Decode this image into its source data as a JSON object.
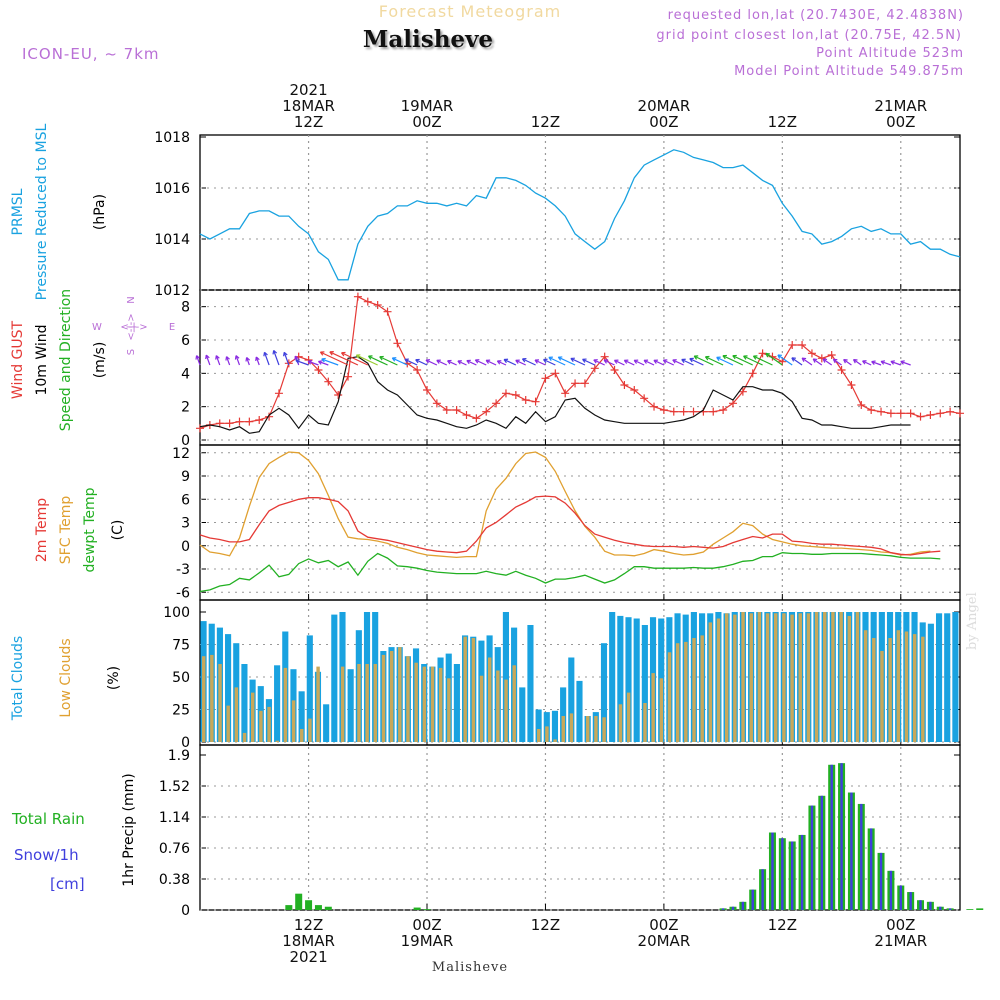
{
  "header": {
    "title": "Forecast Meteogram",
    "location": "Malisheve",
    "model": "ICON-EU, ~ 7km",
    "requested": "requested lon,lat (20.7430E, 42.4838N)",
    "grid_point": "grid point closest lon,lat (20.75E, 42.5N)",
    "point_altitude": "Point Altitude 523m",
    "model_altitude": "Model Point Altitude 549.875m",
    "watermark": "by Angel",
    "bottom_name": "Malisheve"
  },
  "time_axis": {
    "top_labels": [
      {
        "lines": [
          "2021",
          "18MAR",
          "12Z"
        ],
        "hour": 12
      },
      {
        "lines": [
          "19MAR",
          "00Z"
        ],
        "hour": 24
      },
      {
        "lines": [
          "12Z"
        ],
        "hour": 36
      },
      {
        "lines": [
          "20MAR",
          "00Z"
        ],
        "hour": 48
      },
      {
        "lines": [
          "12Z"
        ],
        "hour": 60
      },
      {
        "lines": [
          "21MAR",
          "00Z"
        ],
        "hour": 72
      }
    ],
    "bottom_labels": [
      {
        "lines": [
          "12Z",
          "18MAR",
          "2021"
        ],
        "hour": 12
      },
      {
        "lines": [
          "00Z",
          "19MAR"
        ],
        "hour": 24
      },
      {
        "lines": [
          "12Z"
        ],
        "hour": 36
      },
      {
        "lines": [
          "00Z",
          "20MAR"
        ],
        "hour": 48
      },
      {
        "lines": [
          "12Z"
        ],
        "hour": 60
      },
      {
        "lines": [
          "00Z",
          "21MAR"
        ],
        "hour": 72
      }
    ],
    "start_hour": 1,
    "end_hour": 78
  },
  "panels": {
    "pressure": {
      "left_labels": [
        {
          "text": "PRMSL",
          "color": "#19a2e0"
        },
        {
          "text": "Pressure Reduced to MSL",
          "color": "#19a2e0"
        },
        {
          "text": "(hPa)",
          "color": "#000000"
        }
      ]
    },
    "wind": {
      "left_labels": [
        {
          "text": "Wind GUST",
          "color": "#e53935"
        },
        {
          "text": "10m Wind",
          "color": "#000000"
        },
        {
          "text": "Speed and Direction",
          "color": "#22b022"
        },
        {
          "text": "(m/s)",
          "color": "#000000"
        }
      ],
      "compass": {
        "n": "N",
        "s": "S",
        "w": "W",
        "e": "E",
        "arrow": "<-|->",
        "color": "#b96fd6"
      }
    },
    "temp": {
      "left_labels": [
        {
          "text": "2m Temp",
          "color": "#e53935"
        },
        {
          "text": "SFC Temp",
          "color": "#e0a030"
        },
        {
          "text": "dewpt Temp",
          "color": "#22b022"
        },
        {
          "text": "(C)",
          "color": "#000000"
        }
      ]
    },
    "clouds": {
      "left_labels": [
        {
          "text": "Total Clouds",
          "color": "#19a2e0"
        },
        {
          "text": "Low Clouds",
          "color": "#e0a030"
        },
        {
          "text": "(%)",
          "color": "#000000"
        }
      ]
    },
    "precip": {
      "ylabel": "1hr Precip (mm)",
      "legend": [
        {
          "text": "Total  Rain",
          "color": "#22b022"
        },
        {
          "text": "Snow/1h",
          "color": "#3f3fdd"
        },
        {
          "text": "[cm]",
          "color": "#3f3fdd"
        }
      ]
    }
  },
  "chart_data": [
    {
      "type": "line",
      "name": "pressure",
      "ylim": [
        1012,
        1018
      ],
      "yticks": [
        "1012",
        "1014",
        "1016",
        "1018"
      ],
      "x_hours_start": 1,
      "series": [
        {
          "name": "PRMSL",
          "color": "#19a2e0",
          "values": [
            1014.2,
            1014.0,
            1014.2,
            1014.4,
            1014.4,
            1015.0,
            1015.1,
            1015.1,
            1014.9,
            1014.9,
            1014.5,
            1014.2,
            1013.5,
            1013.2,
            1012.4,
            1012.4,
            1013.8,
            1014.5,
            1014.9,
            1015.0,
            1015.3,
            1015.3,
            1015.5,
            1015.4,
            1015.4,
            1015.3,
            1015.4,
            1015.3,
            1015.7,
            1015.6,
            1016.4,
            1016.4,
            1016.3,
            1016.1,
            1015.8,
            1015.6,
            1015.3,
            1014.9,
            1014.2,
            1013.9,
            1013.6,
            1013.9,
            1014.8,
            1015.5,
            1016.4,
            1016.9,
            1017.1,
            1017.3,
            1017.5,
            1017.4,
            1017.2,
            1017.1,
            1017.0,
            1016.8,
            1016.8,
            1016.9,
            1016.6,
            1016.3,
            1016.1,
            1015.4,
            1014.9,
            1014.3,
            1014.2,
            1013.8,
            1013.9,
            1014.1,
            1014.4,
            1014.5,
            1014.3,
            1014.4,
            1014.2,
            1014.2,
            1013.8,
            1013.9,
            1013.6,
            1013.6,
            1013.4,
            1013.3
          ]
        }
      ]
    },
    {
      "type": "line",
      "name": "wind",
      "ylim": [
        0,
        9
      ],
      "yticks": [
        "0",
        "2",
        "4",
        "6",
        "8"
      ],
      "x_hours_start": 1,
      "series": [
        {
          "name": "Wind GUST",
          "color": "#e53935",
          "values": [
            0.7,
            0.9,
            1.0,
            1.0,
            1.1,
            1.1,
            1.2,
            1.4,
            2.8,
            4.6,
            5.0,
            4.8,
            4.2,
            3.5,
            2.7,
            3.8,
            8.6,
            8.3,
            8.1,
            7.7,
            5.8,
            4.6,
            4.2,
            3.0,
            2.2,
            1.8,
            1.8,
            1.5,
            1.3,
            1.7,
            2.2,
            2.8,
            2.7,
            2.4,
            2.3,
            3.7,
            4.0,
            2.8,
            3.4,
            3.4,
            4.3,
            5.0,
            4.2,
            3.3,
            3.0,
            2.5,
            2.0,
            1.8,
            1.7,
            1.7,
            1.7,
            1.7,
            1.7,
            1.8,
            2.2,
            2.9,
            4.0,
            5.2,
            5.0,
            4.7,
            5.7,
            5.7,
            5.2,
            4.9,
            5.1,
            4.2,
            3.3,
            2.1,
            1.8,
            1.7,
            1.6,
            1.6,
            1.6,
            1.4,
            1.5,
            1.6,
            1.7,
            1.6
          ]
        },
        {
          "name": "10m Wind",
          "color": "#111111",
          "values": [
            0.8,
            0.9,
            0.8,
            0.6,
            0.8,
            0.4,
            0.5,
            1.5,
            1.9,
            1.5,
            0.7,
            1.5,
            1.0,
            0.9,
            2.3,
            4.9,
            5.0,
            4.6,
            3.5,
            3.0,
            2.7,
            2.1,
            1.5,
            1.3,
            1.2,
            1.0,
            0.8,
            0.7,
            0.9,
            1.2,
            1.0,
            0.7,
            1.4,
            1.0,
            1.7,
            1.1,
            1.4,
            2.4,
            2.5,
            1.9,
            1.5,
            1.2,
            1.1,
            1.0,
            1.0,
            1.0,
            1.0,
            1.0,
            1.1,
            1.2,
            1.4,
            1.8,
            3.0,
            2.7,
            2.4,
            3.2,
            3.2,
            3.0,
            3.0,
            2.8,
            2.3,
            1.3,
            1.2,
            0.9,
            0.9,
            0.8,
            0.7,
            0.7,
            0.7,
            0.8,
            0.9,
            0.9,
            0.9
          ]
        }
      ],
      "arrow_band_value": 4.5
    },
    {
      "type": "line",
      "name": "temp",
      "ylim": [
        -7,
        13
      ],
      "yticks": [
        "-6",
        "-3",
        "0",
        "3",
        "6",
        "9",
        "12"
      ],
      "x_hours_start": 1,
      "series": [
        {
          "name": "2m Temp",
          "color": "#e53935",
          "values": [
            1.4,
            1.0,
            0.8,
            0.5,
            0.5,
            0.8,
            2.7,
            4.5,
            5.2,
            5.6,
            6.0,
            6.2,
            6.2,
            6.0,
            5.7,
            4.5,
            1.9,
            1.1,
            0.9,
            0.7,
            0.4,
            0.1,
            -0.2,
            -0.5,
            -0.7,
            -0.8,
            -0.9,
            -0.7,
            0.6,
            2.3,
            3.0,
            4.0,
            5.0,
            5.6,
            6.3,
            6.4,
            6.3,
            5.5,
            4.2,
            2.6,
            1.5,
            1.1,
            0.7,
            0.4,
            0.2,
            0.0,
            -0.1,
            -0.1,
            -0.1,
            -0.2,
            -0.1,
            -0.2,
            -0.3,
            -0.1,
            0.4,
            0.8,
            1.2,
            1.0,
            1.5,
            1.5,
            0.6,
            0.5,
            0.3,
            0.2,
            0.2,
            0.1,
            0.0,
            -0.1,
            -0.2,
            -0.4,
            -0.9,
            -1.1,
            -1.2,
            -1.0,
            -0.8,
            -0.7
          ]
        },
        {
          "name": "SFC Temp",
          "color": "#e0a030",
          "values": [
            0.1,
            -0.8,
            -1.0,
            -1.3,
            1.0,
            5.1,
            8.8,
            10.6,
            11.4,
            12.1,
            12.0,
            11.0,
            9.3,
            6.5,
            3.5,
            1.1,
            0.9,
            0.8,
            0.6,
            0.3,
            -0.2,
            -0.5,
            -0.9,
            -1.2,
            -1.3,
            -1.4,
            -1.5,
            -1.4,
            -1.4,
            4.5,
            7.3,
            8.7,
            10.6,
            11.9,
            12.1,
            11.4,
            9.6,
            7.0,
            4.5,
            2.5,
            1.1,
            -0.7,
            -1.2,
            -1.2,
            -1.3,
            -1.0,
            -0.5,
            -0.7,
            -1.0,
            -1.2,
            -1.1,
            -0.8,
            0.2,
            1.0,
            1.8,
            2.9,
            2.6,
            1.5,
            0.8,
            0.5,
            0.2,
            0.0,
            -0.1,
            -0.2,
            -0.3,
            -0.3,
            -0.4,
            -0.5,
            -0.6,
            -0.8,
            -0.9,
            -1.2,
            -1.1,
            -0.8,
            -0.7
          ]
        },
        {
          "name": "dewpt Temp",
          "color": "#22b022",
          "values": [
            -5.9,
            -5.7,
            -5.2,
            -5.0,
            -4.2,
            -4.4,
            -3.5,
            -2.5,
            -4.0,
            -3.7,
            -2.3,
            -1.7,
            -2.2,
            -1.9,
            -2.7,
            -2.1,
            -3.8,
            -2.0,
            -1.0,
            -1.6,
            -2.6,
            -2.7,
            -2.9,
            -3.2,
            -3.4,
            -3.5,
            -3.6,
            -3.6,
            -3.6,
            -3.3,
            -3.6,
            -3.8,
            -3.3,
            -3.8,
            -4.2,
            -4.8,
            -4.3,
            -4.3,
            -4.1,
            -3.8,
            -4.3,
            -4.8,
            -4.4,
            -3.6,
            -2.7,
            -2.7,
            -2.9,
            -2.9,
            -2.9,
            -2.9,
            -2.8,
            -2.9,
            -2.9,
            -2.7,
            -2.4,
            -2.0,
            -1.9,
            -1.4,
            -1.4,
            -0.9,
            -1.0,
            -1.0,
            -1.1,
            -1.1,
            -1.0,
            -1.0,
            -1.0,
            -1.0,
            -1.1,
            -1.2,
            -1.3,
            -1.5,
            -1.6,
            -1.6,
            -1.6,
            -1.7
          ]
        }
      ]
    },
    {
      "type": "bar",
      "name": "clouds",
      "ylim": [
        0,
        100
      ],
      "yticks": [
        "0",
        "25",
        "50",
        "75",
        "100"
      ],
      "x_hours_start": 1,
      "series": [
        {
          "name": "Total Clouds",
          "color": "#19a2e0",
          "values": [
            93,
            91,
            88,
            83,
            76,
            60,
            48,
            43,
            33,
            59,
            85,
            56,
            39,
            82,
            54,
            29,
            98,
            100,
            56,
            86,
            100,
            100,
            70,
            73,
            73,
            66,
            72,
            60,
            58,
            65,
            68,
            60,
            82,
            81,
            78,
            82,
            73,
            100,
            88,
            42,
            90,
            25,
            23,
            24,
            42,
            65,
            47,
            20,
            23,
            76,
            100,
            97,
            96,
            95,
            90,
            96,
            95,
            96,
            99,
            98,
            100,
            99,
            99,
            100,
            99,
            100,
            100,
            100,
            100,
            100,
            100,
            100,
            100,
            100,
            100,
            100,
            100,
            100,
            100,
            100,
            100,
            100,
            100,
            100,
            100,
            100,
            100,
            100,
            92,
            91,
            99,
            99,
            100
          ]
        },
        {
          "name": "Low Clouds",
          "color": "#c8a85a",
          "values": [
            66,
            67,
            60,
            28,
            42,
            7,
            38,
            24,
            27,
            1,
            57,
            32,
            10,
            18,
            58,
            0,
            0,
            58,
            0,
            60,
            60,
            60,
            67,
            70,
            73,
            66,
            61,
            58,
            58,
            57,
            49,
            0,
            81,
            80,
            51,
            65,
            55,
            48,
            59,
            0,
            0,
            10,
            12,
            2,
            20,
            22,
            0,
            20,
            20,
            19,
            0,
            29,
            38,
            0,
            30,
            53,
            49,
            69,
            76,
            77,
            80,
            82,
            92,
            95,
            99,
            98,
            100,
            99,
            100,
            99,
            99,
            99,
            98,
            99,
            99,
            100,
            100,
            100,
            100,
            97,
            100,
            86,
            80,
            70,
            80,
            86,
            85,
            83,
            81
          ]
        }
      ]
    },
    {
      "type": "bar",
      "name": "precip",
      "ylim": [
        0,
        1.9
      ],
      "yticks": [
        "0",
        "0.38",
        "0.76",
        "1.14",
        "1.52",
        "1.9"
      ],
      "x_hours_start": 1,
      "series": [
        {
          "name": "Total Rain",
          "color": "#22b022",
          "values": [
            0,
            0,
            0,
            0,
            0,
            0,
            0,
            0,
            0,
            0.06,
            0.2,
            0.12,
            0.06,
            0.04,
            0,
            0,
            0,
            0,
            0,
            0,
            0,
            0,
            0.03,
            0.01,
            0,
            0,
            0,
            0,
            0,
            0,
            0,
            0,
            0,
            0,
            0,
            0,
            0,
            0,
            0,
            0,
            0,
            0,
            0,
            0,
            0,
            0,
            0,
            0,
            0,
            0,
            0,
            0,
            0,
            0.02,
            0.04,
            0.1,
            0.25,
            0.5,
            0.95,
            0.88,
            0.84,
            0.92,
            1.28,
            1.4,
            1.78,
            1.8,
            1.44,
            1.3,
            1.0,
            0.7,
            0.48,
            0.3,
            0.22,
            0.12,
            0.1,
            0.04,
            0.02,
            0,
            0.01,
            0.02
          ]
        },
        {
          "name": "Snow/1h",
          "color": "#3f3fdd",
          "values": [
            0,
            0,
            0,
            0,
            0,
            0,
            0,
            0,
            0,
            0,
            0,
            0,
            0,
            0,
            0,
            0,
            0,
            0,
            0,
            0,
            0,
            0,
            0,
            0,
            0,
            0,
            0,
            0,
            0,
            0,
            0,
            0,
            0,
            0,
            0,
            0,
            0,
            0,
            0,
            0,
            0,
            0,
            0,
            0,
            0,
            0,
            0,
            0,
            0,
            0,
            0,
            0,
            0,
            0.02,
            0.04,
            0.1,
            0.25,
            0.5,
            0.95,
            0.88,
            0.84,
            0.92,
            1.28,
            1.4,
            1.78,
            1.8,
            1.44,
            1.3,
            1.0,
            0.7,
            0.48,
            0.3,
            0.22,
            0.12,
            0.1,
            0.04,
            0.02,
            0,
            0,
            0
          ]
        }
      ]
    }
  ]
}
